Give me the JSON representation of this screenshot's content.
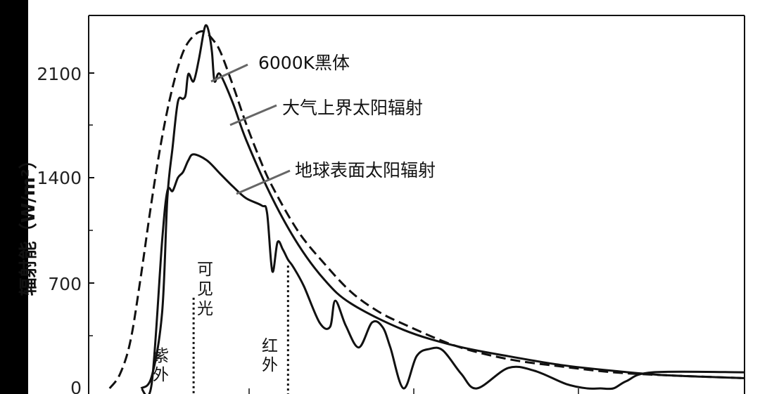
{
  "chart_data": {
    "type": "line",
    "ylabel": "辐射能（W/m²）",
    "xlabel": "",
    "ylim": [
      0,
      2550
    ],
    "xlim": [
      0,
      2.5
    ],
    "yticks": [
      0,
      700,
      1400,
      2100
    ],
    "ytick_labels": [
      "0",
      "700",
      "1400",
      "2100"
    ],
    "grid": false,
    "series": [
      {
        "name": "6000K黑体",
        "style": "dashed",
        "x": [
          0.08,
          0.12,
          0.16,
          0.2,
          0.24,
          0.28,
          0.32,
          0.36,
          0.4,
          0.44,
          0.48,
          0.5,
          0.52,
          0.56,
          0.6,
          0.65,
          0.7,
          0.8,
          0.9,
          1.0,
          1.1,
          1.2,
          1.4,
          1.6,
          1.8,
          2.0,
          2.2,
          2.5
        ],
        "y": [
          0,
          100,
          330,
          780,
          1280,
          1720,
          2060,
          2300,
          2410,
          2440,
          2370,
          2310,
          2220,
          2020,
          1810,
          1580,
          1380,
          1070,
          850,
          660,
          530,
          440,
          290,
          200,
          150,
          110,
          90,
          70
        ]
      },
      {
        "name": "大气上界太阳辐射",
        "style": "solid",
        "x": [
          0.2,
          0.24,
          0.28,
          0.3,
          0.32,
          0.34,
          0.36,
          0.37,
          0.38,
          0.4,
          0.42,
          0.44,
          0.45,
          0.46,
          0.47,
          0.48,
          0.5,
          0.55,
          0.6,
          0.7,
          0.8,
          0.9,
          1.0,
          1.2,
          1.4,
          1.6,
          1.8,
          2.0,
          2.2,
          2.5
        ],
        "y": [
          0,
          80,
          520,
          1300,
          1650,
          1960,
          1980,
          2010,
          2150,
          2100,
          2250,
          2450,
          2480,
          2420,
          2300,
          2100,
          2150,
          1950,
          1700,
          1300,
          980,
          740,
          580,
          400,
          290,
          220,
          160,
          120,
          90,
          70
        ]
      },
      {
        "name": "地球表面太阳辐射",
        "style": "solid",
        "x": [
          0.2,
          0.24,
          0.28,
          0.3,
          0.32,
          0.34,
          0.36,
          0.38,
          0.4,
          0.45,
          0.5,
          0.55,
          0.6,
          0.66,
          0.68,
          0.7,
          0.72,
          0.74,
          0.76,
          0.78,
          0.82,
          0.88,
          0.92,
          0.94,
          0.98,
          1.03,
          1.08,
          1.12,
          1.15,
          1.2,
          1.25,
          1.3,
          1.35,
          1.42,
          1.48,
          1.6,
          1.7,
          1.82,
          1.9,
          1.95,
          2.0,
          2.05,
          2.15,
          2.5
        ],
        "y": [
          0,
          30,
          1010,
          1350,
          1350,
          1440,
          1480,
          1560,
          1600,
          1560,
          1470,
          1380,
          1300,
          1250,
          1200,
          800,
          1000,
          950,
          880,
          830,
          700,
          450,
          420,
          600,
          430,
          280,
          450,
          420,
          280,
          0,
          220,
          270,
          260,
          100,
          0,
          140,
          120,
          30,
          0,
          0,
          0,
          50,
          110,
          110
        ]
      }
    ],
    "annotations": [
      "6000K黑体",
      "大气上界太阳辐射",
      "地球表面太阳辐射"
    ],
    "regions": [
      {
        "label_lines": [
          "紫",
          "外"
        ],
        "boundary_x": 0.4
      },
      {
        "label_lines": [
          "可",
          "见",
          "光"
        ]
      },
      {
        "label_lines": [
          "红",
          "外"
        ],
        "boundary_x": 0.76
      }
    ]
  }
}
